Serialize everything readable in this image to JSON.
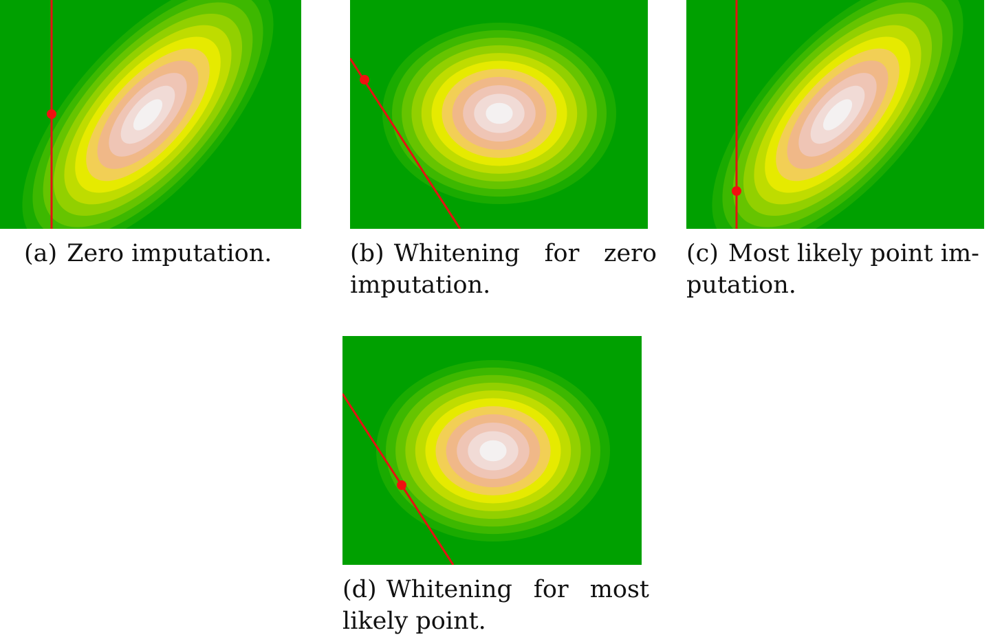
{
  "colors": {
    "background": "#00a000",
    "line": "#e41212",
    "point": "#f01010",
    "levels": [
      "#00a000",
      "#1aab00",
      "#3db800",
      "#66c400",
      "#92d000",
      "#bfdc00",
      "#e6ea00",
      "#f2cf55",
      "#f0b888",
      "#efc5b5",
      "#f1dbd6",
      "#f4f1f1"
    ]
  },
  "panels": [
    {
      "id": "a",
      "tag": "(a)",
      "caption_lines": [
        "Zero imputation."
      ],
      "distribution": "correlated",
      "line_kind": "vertical"
    },
    {
      "id": "b",
      "tag": "(b)",
      "caption_lines": [
        "Whitening for zero",
        "imputation."
      ],
      "distribution": "whitened",
      "line_kind": "diagonal"
    },
    {
      "id": "c",
      "tag": "(c)",
      "caption_lines": [
        "Most likely point im-",
        "putation."
      ],
      "distribution": "correlated",
      "line_kind": "vertical"
    },
    {
      "id": "d",
      "tag": "(d)",
      "caption_lines": [
        "Whitening for most",
        "likely point."
      ],
      "distribution": "whitened",
      "line_kind": "diagonal"
    }
  ]
}
